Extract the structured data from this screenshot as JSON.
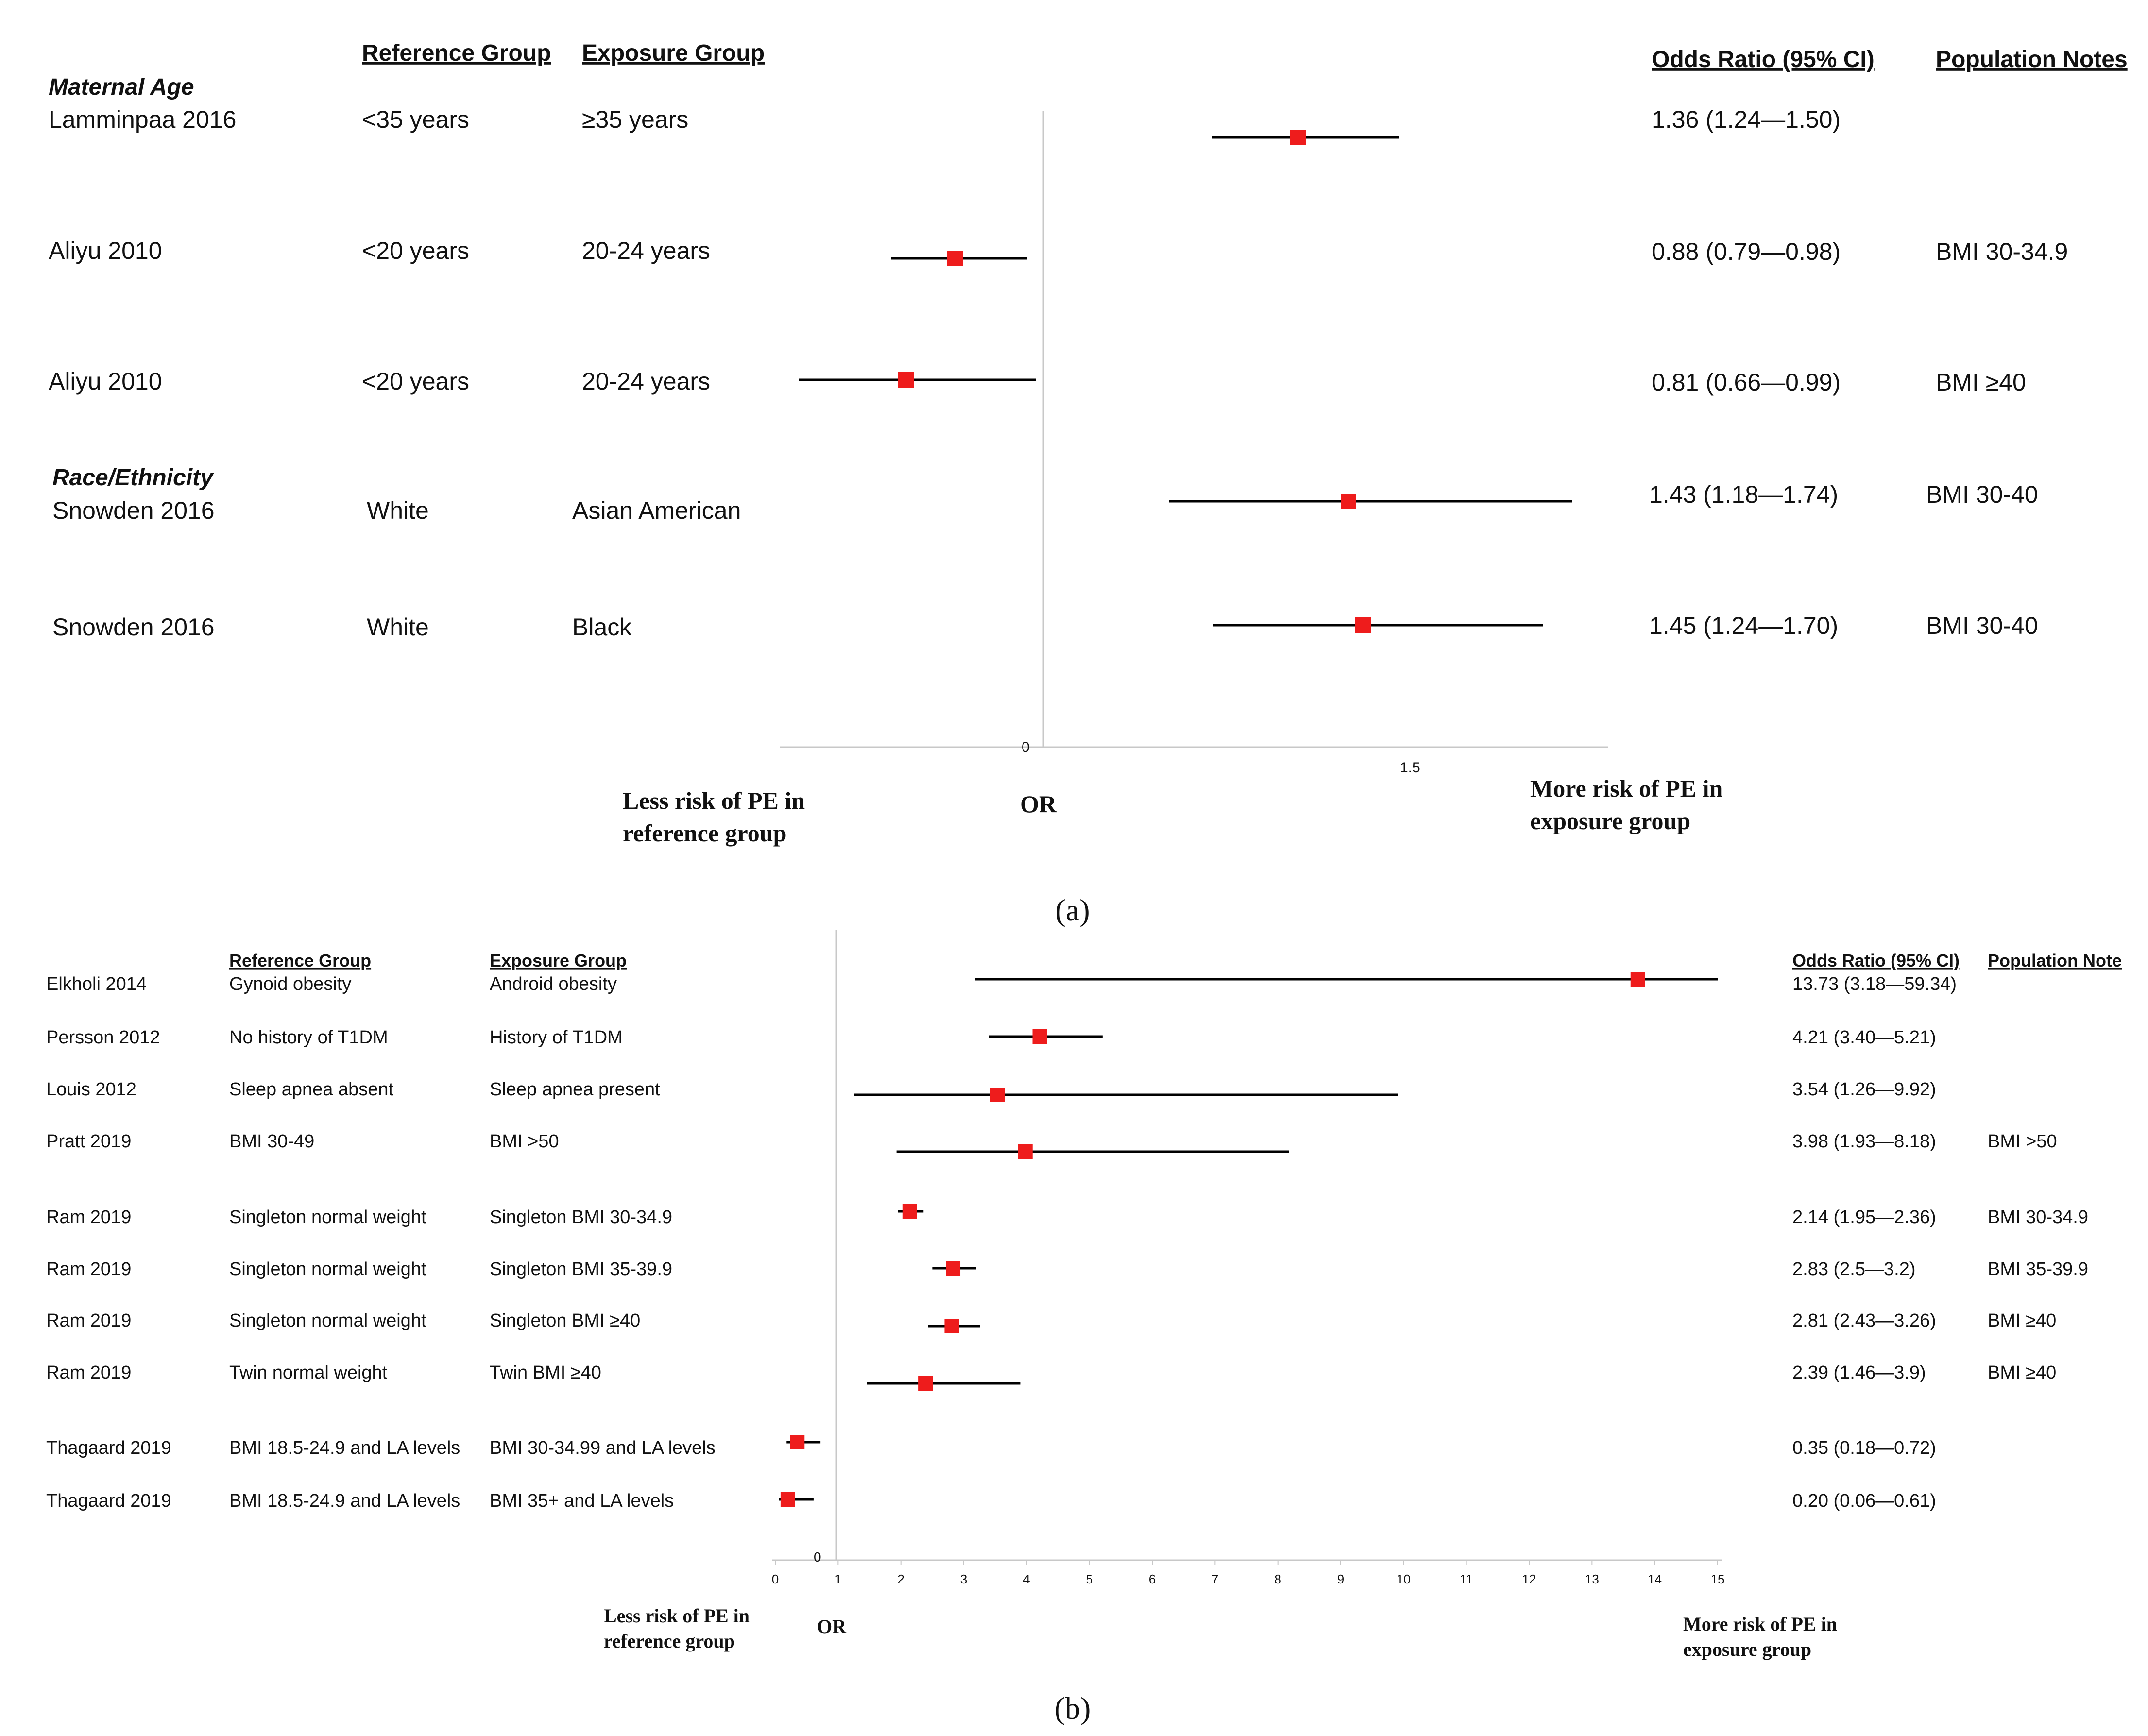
{
  "colors": {
    "marker": "#ee1c1c",
    "whisker": "#000000",
    "axis": "#c8c8c8",
    "text": "#111111"
  },
  "chart_data": [
    {
      "type": "forest",
      "panel_label": "(a)",
      "headers": {
        "reference": "Reference Group",
        "exposure": "Exposure Group",
        "odds_ratio": "Odds Ratio (95% CI)",
        "population": "Population Notes"
      },
      "zero_tick": "0",
      "ticks": [
        "1.5"
      ],
      "xlabel": "OR",
      "left_note": [
        "Less risk of PE in",
        "reference group"
      ],
      "right_note": [
        "More risk of PE in",
        "exposure group"
      ],
      "groups": [
        {
          "label": "Maternal Age",
          "rows": [
            0,
            1,
            2
          ]
        },
        {
          "label": "Race/Ethnicity",
          "rows": [
            3,
            4
          ]
        }
      ],
      "rows": [
        {
          "study": "Lamminpaa 2016",
          "reference": "<35 years",
          "exposure": "≥35 years",
          "or_text": "1.36 (1.24—1.50)",
          "note": "",
          "or": 1.36,
          "ci_low": 1.24,
          "ci_high": 1.5
        },
        {
          "study": "Aliyu 2010",
          "reference": "<20 years",
          "exposure": "20-24 years",
          "or_text": "0.88 (0.79—0.98)",
          "note": "BMI 30-34.9",
          "or": 0.88,
          "ci_low": 0.79,
          "ci_high": 0.98
        },
        {
          "study": "Aliyu 2010",
          "reference": "<20 years",
          "exposure": "20-24 years",
          "or_text": "0.81 (0.66—0.99)",
          "note": "BMI ≥40",
          "or": 0.81,
          "ci_low": 0.66,
          "ci_high": 0.99
        },
        {
          "study": "Snowden 2016",
          "reference": "White",
          "exposure": "Asian American",
          "or_text": "1.43 (1.18—1.74)",
          "note": "BMI 30-40",
          "or": 1.43,
          "ci_low": 1.18,
          "ci_high": 1.74
        },
        {
          "study": "Snowden 2016",
          "reference": "White",
          "exposure": "Black",
          "or_text": "1.45 (1.24—1.70)",
          "note": "BMI 30-40",
          "or": 1.45,
          "ci_low": 1.24,
          "ci_high": 1.7
        }
      ]
    },
    {
      "type": "forest",
      "panel_label": "(b)",
      "headers": {
        "reference": "Reference Group",
        "exposure": "Exposure Group",
        "odds_ratio": "Odds Ratio (95% CI)",
        "population": "Population Note"
      },
      "zero_tick": "0",
      "ticks": [
        "0",
        "1",
        "2",
        "3",
        "4",
        "5",
        "6",
        "7",
        "8",
        "9",
        "10",
        "11",
        "12",
        "13",
        "14",
        "15"
      ],
      "xlim": [
        0,
        15
      ],
      "xlabel": "OR",
      "left_note": [
        "Less risk of PE in",
        "reference group"
      ],
      "right_note": [
        "More risk of PE in",
        "exposure group"
      ],
      "rows": [
        {
          "study": "Elkholi 2014",
          "reference": "Gynoid obesity",
          "exposure": "Android obesity",
          "or_text": "13.73 (3.18—59.34)",
          "note": "",
          "or": 13.73,
          "ci_low": 3.18,
          "ci_high": 59.34
        },
        {
          "study": "Persson 2012",
          "reference": "No history of T1DM",
          "exposure": "History of T1DM",
          "or_text": "4.21 (3.40—5.21)",
          "note": "",
          "or": 4.21,
          "ci_low": 3.4,
          "ci_high": 5.21
        },
        {
          "study": "Louis 2012",
          "reference": "Sleep apnea absent",
          "exposure": "Sleep apnea present",
          "or_text": "3.54 (1.26—9.92)",
          "note": "",
          "or": 3.54,
          "ci_low": 1.26,
          "ci_high": 9.92
        },
        {
          "study": "Pratt 2019",
          "reference": "BMI 30-49",
          "exposure": "BMI >50",
          "or_text": "3.98 (1.93—8.18)",
          "note": "BMI >50",
          "or": 3.98,
          "ci_low": 1.93,
          "ci_high": 8.18
        },
        {
          "study": "Ram 2019",
          "reference": "Singleton normal weight",
          "exposure": "Singleton BMI 30-34.9",
          "or_text": "2.14 (1.95—2.36)",
          "note": "BMI 30-34.9",
          "or": 2.14,
          "ci_low": 1.95,
          "ci_high": 2.36
        },
        {
          "study": "Ram 2019",
          "reference": "Singleton normal weight",
          "exposure": "Singleton BMI 35-39.9",
          "or_text": "2.83 (2.5—3.2)",
          "note": "BMI 35-39.9",
          "or": 2.83,
          "ci_low": 2.5,
          "ci_high": 3.2
        },
        {
          "study": "Ram 2019",
          "reference": "Singleton normal weight",
          "exposure": "Singleton BMI ≥40",
          "or_text": "2.81 (2.43—3.26)",
          "note": "BMI ≥40",
          "or": 2.81,
          "ci_low": 2.43,
          "ci_high": 3.26
        },
        {
          "study": "Ram 2019",
          "reference": "Twin normal weight",
          "exposure": "Twin BMI ≥40",
          "or_text": "2.39 (1.46—3.9)",
          "note": "BMI ≥40",
          "or": 2.39,
          "ci_low": 1.46,
          "ci_high": 3.9
        },
        {
          "study": "Thagaard 2019",
          "reference": "BMI 18.5-24.9 and LA levels",
          "exposure": "BMI 30-34.99 and LA levels",
          "or_text": "0.35 (0.18—0.72)",
          "note": "",
          "or": 0.35,
          "ci_low": 0.18,
          "ci_high": 0.72
        },
        {
          "study": "Thagaard 2019",
          "reference": "BMI 18.5-24.9 and LA levels",
          "exposure": "BMI 35+ and LA levels",
          "or_text": "0.20 (0.06—0.61)",
          "note": "",
          "or": 0.2,
          "ci_low": 0.06,
          "ci_high": 0.61
        }
      ]
    }
  ]
}
